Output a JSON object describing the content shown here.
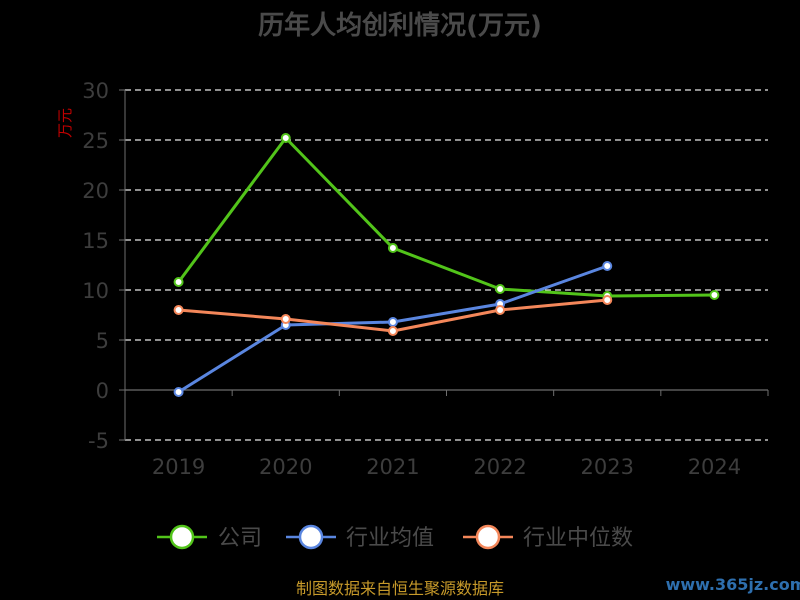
{
  "colors": {
    "company": "#52c41a",
    "industry_avg": "#5a86e0",
    "industry_median": "#f4875a",
    "grid": "#e8e8e8",
    "axis": "#6e6e6e"
  },
  "chart_data": {
    "type": "line",
    "title": "历年人均创利情况(万元)",
    "ylabel": "万元",
    "categories": [
      "2019",
      "2020",
      "2021",
      "2022",
      "2023",
      "2024"
    ],
    "ylim": [
      -5,
      30
    ],
    "yticks": [
      30,
      25,
      20,
      15,
      10,
      5,
      0,
      -5
    ],
    "grid": true,
    "legend_position": "bottom",
    "series": [
      {
        "name": "公司",
        "values": [
          10.8,
          25.2,
          14.2,
          10.1,
          9.4,
          9.5
        ]
      },
      {
        "name": "行业均值",
        "values": [
          -0.2,
          6.5,
          6.8,
          8.6,
          12.4,
          null
        ]
      },
      {
        "name": "行业中位数",
        "values": [
          8.0,
          7.1,
          5.9,
          8.0,
          9.0,
          null
        ]
      }
    ]
  },
  "footer": {
    "source": "制图数据来自恒生聚源数据库",
    "watermark": "www.365jz.com"
  }
}
